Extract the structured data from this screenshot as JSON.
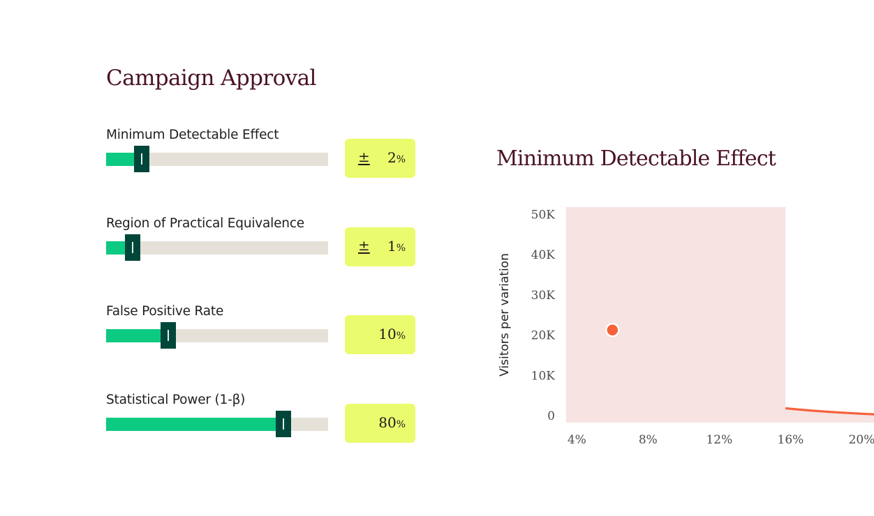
{
  "page": {
    "title": "Campaign Approval"
  },
  "sliders": [
    {
      "label": "Minimum Detectable Effect",
      "fraction": 0.16,
      "has_plus_minus": true,
      "plus_minus": "±",
      "value": "2",
      "unit": "%"
    },
    {
      "label": "Region of Practical Equivalence",
      "fraction": 0.12,
      "has_plus_minus": true,
      "plus_minus": "±",
      "value": "1",
      "unit": "%"
    },
    {
      "label": "False Positive Rate",
      "fraction": 0.28,
      "has_plus_minus": false,
      "plus_minus": "",
      "value": "10",
      "unit": "%"
    },
    {
      "label": "Statistical Power (1-β)",
      "fraction": 0.8,
      "has_plus_minus": false,
      "plus_minus": "",
      "value": "80",
      "unit": "%"
    }
  ],
  "colors": {
    "title": "#4a1227",
    "fill": "#0dca82",
    "thumb": "#00463a",
    "track": "#e6e1d8",
    "value_box": "#ebfb6e",
    "curve": "#f7603b",
    "area": "#f6e3e2"
  },
  "chart_data": {
    "type": "area",
    "title": "Minimum Detectable Effect",
    "xlabel": "",
    "ylabel": "Visitors per variation",
    "xlim": [
      3.4,
      21
    ],
    "ylim": [
      0,
      52000
    ],
    "x_ticks": [
      "4%",
      "8%",
      "12%",
      "16%",
      "20%"
    ],
    "x_tick_values": [
      4,
      8,
      12,
      16,
      20
    ],
    "y_ticks": [
      "0",
      "10K",
      "20K",
      "30K",
      "40K",
      "50K"
    ],
    "y_tick_values": [
      0,
      10000,
      20000,
      30000,
      40000,
      50000
    ],
    "curve_constant": 880000,
    "marker": {
      "x": 6,
      "y": 23000
    },
    "grid": false,
    "legend": "none"
  }
}
